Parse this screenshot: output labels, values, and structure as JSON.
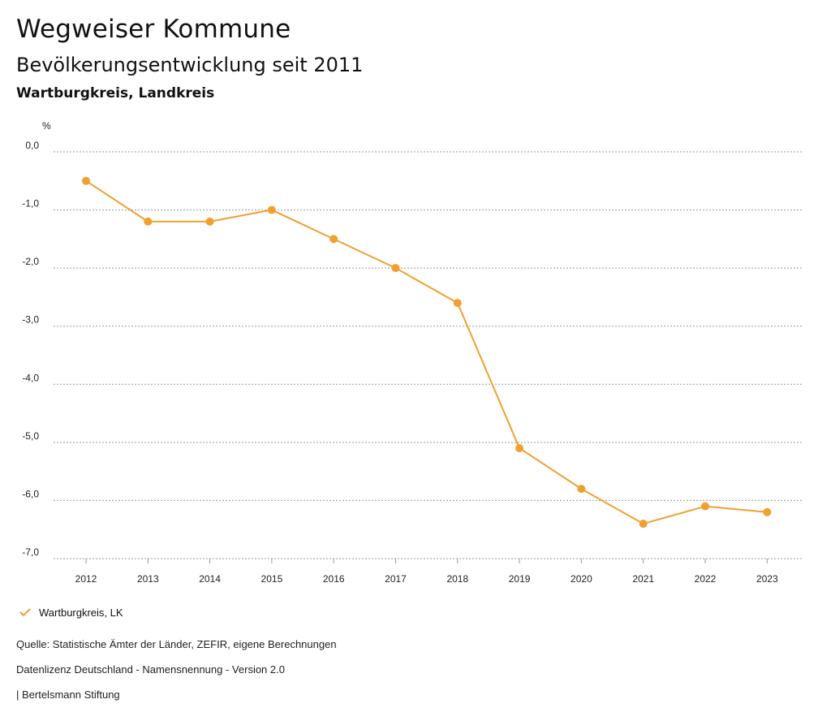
{
  "header": {
    "title": "Wegweiser Kommune",
    "subtitle": "Bevölkerungsentwicklung seit 2011",
    "region": "Wartburgkreis, Landkreis"
  },
  "chart_data": {
    "type": "line",
    "ylabel": "%",
    "xlabel": "",
    "ylim": [
      -7,
      0
    ],
    "y_ticks": [
      0,
      -1,
      -2,
      -3,
      -4,
      -5,
      -6,
      -7
    ],
    "y_tick_labels": [
      "0,0",
      "-1,0",
      "-2,0",
      "-3,0",
      "-4,0",
      "-5,0",
      "-6,0",
      "-7,0"
    ],
    "grid": true,
    "categories": [
      "2012",
      "2013",
      "2014",
      "2015",
      "2016",
      "2017",
      "2018",
      "2019",
      "2020",
      "2021",
      "2022",
      "2023"
    ],
    "series": [
      {
        "name": "Wartburgkreis, LK",
        "color": "#f0a030",
        "values": [
          -0.5,
          -1.2,
          -1.2,
          -1.0,
          -1.5,
          -2.0,
          -2.6,
          -5.1,
          -5.8,
          -6.4,
          -6.1,
          -6.2
        ]
      }
    ]
  },
  "legend": {
    "label": "Wartburgkreis, LK",
    "color": "#f0a030"
  },
  "footer": {
    "source": "Quelle: Statistische Ämter der Länder, ZEFIR, eigene Berechnungen",
    "license": "Datenlizenz Deutschland - Namensnennung - Version 2.0",
    "brand": "| Bertelsmann Stiftung"
  }
}
